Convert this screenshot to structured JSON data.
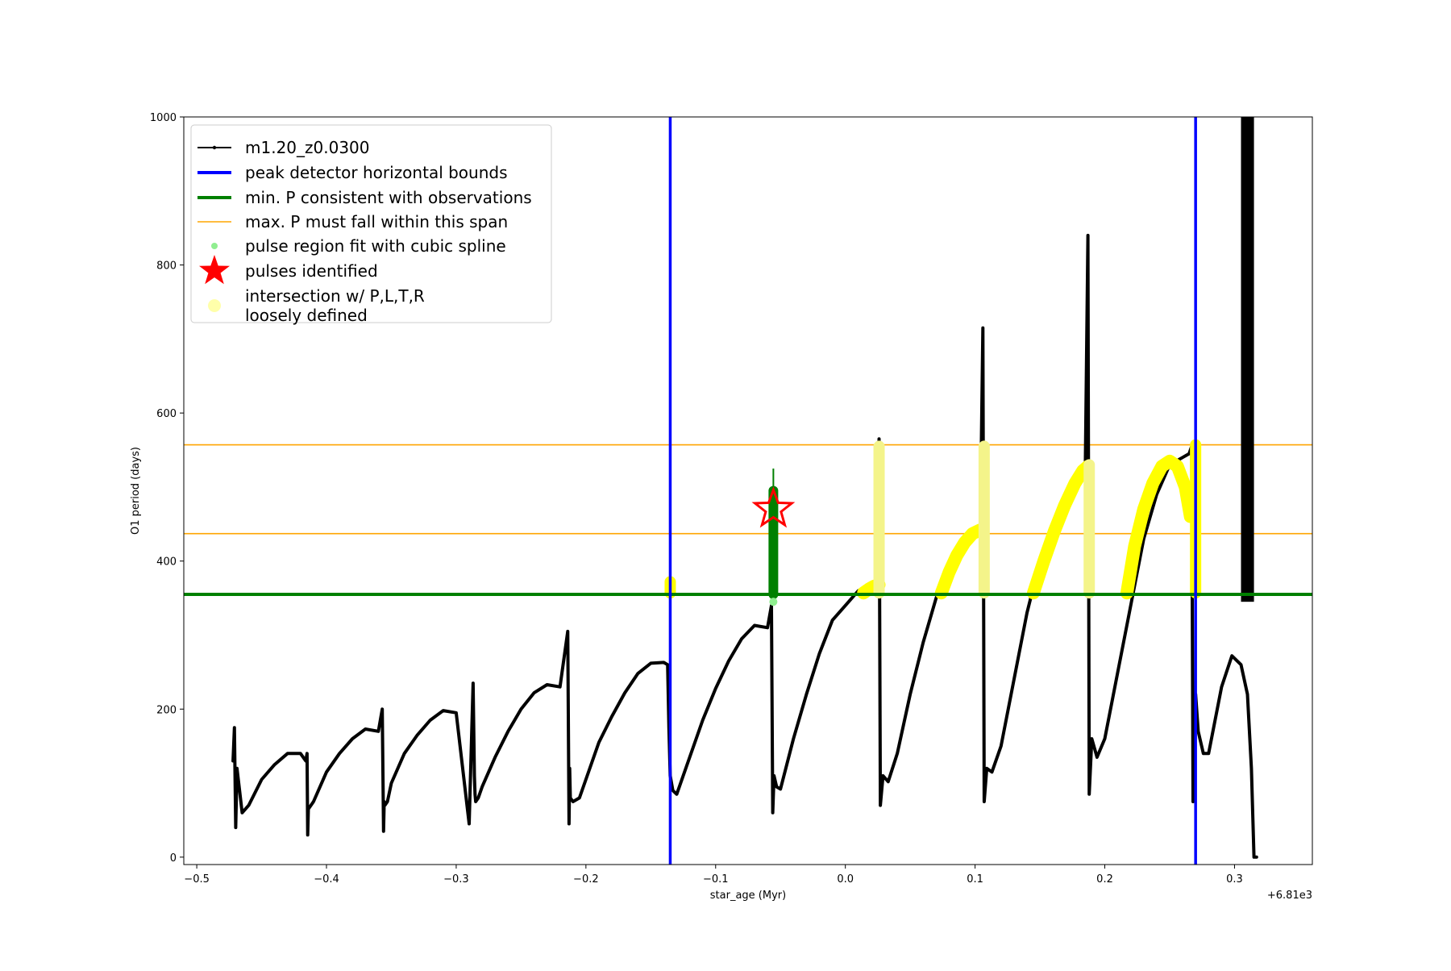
{
  "chart_data": {
    "type": "line",
    "xlabel": "star_age (Myr)",
    "ylabel": "O1 period (days)",
    "x_offset_label": "+6.81e3",
    "xlim": [
      -0.51,
      0.36
    ],
    "ylim": [
      -10,
      1000
    ],
    "xticks": [
      -0.5,
      -0.4,
      -0.3,
      -0.2,
      -0.1,
      0.0,
      0.1,
      0.2,
      0.3
    ],
    "xtick_labels": [
      "−0.5",
      "−0.4",
      "−0.3",
      "−0.2",
      "−0.1",
      "0.0",
      "0.1",
      "0.2",
      "0.3"
    ],
    "yticks": [
      0,
      200,
      400,
      600,
      800,
      1000
    ],
    "ytick_labels": [
      "0",
      "200",
      "400",
      "600",
      "800",
      "1000"
    ],
    "legend_position": "upper-left",
    "series": [
      {
        "name": "m1.20_z0.0300",
        "color": "#000000",
        "kind": "line-marker",
        "x": [
          -0.472,
          -0.471,
          -0.47,
          -0.469,
          -0.467,
          -0.465,
          -0.46,
          -0.45,
          -0.44,
          -0.43,
          -0.42,
          -0.416,
          -0.415,
          -0.4145,
          -0.414,
          -0.412,
          -0.41,
          -0.4,
          -0.39,
          -0.38,
          -0.37,
          -0.36,
          -0.357,
          -0.356,
          -0.3555,
          -0.355,
          -0.353,
          -0.35,
          -0.34,
          -0.33,
          -0.32,
          -0.31,
          -0.3,
          -0.29,
          -0.287,
          -0.286,
          -0.2855,
          -0.285,
          -0.283,
          -0.28,
          -0.27,
          -0.26,
          -0.25,
          -0.24,
          -0.23,
          -0.22,
          -0.214,
          -0.213,
          -0.2125,
          -0.212,
          -0.21,
          -0.205,
          -0.19,
          -0.18,
          -0.17,
          -0.16,
          -0.15,
          -0.14,
          -0.137,
          -0.136,
          -0.135,
          -0.133,
          -0.13,
          -0.12,
          -0.11,
          -0.1,
          -0.09,
          -0.08,
          -0.07,
          -0.06,
          -0.057,
          -0.056,
          -0.055,
          -0.053,
          -0.05,
          -0.04,
          -0.03,
          -0.02,
          -0.01,
          0.0,
          0.01,
          0.02,
          0.025,
          0.026,
          0.027,
          0.029,
          0.033,
          0.04,
          0.05,
          0.06,
          0.07,
          0.08,
          0.09,
          0.1,
          0.104,
          0.106,
          0.107,
          0.109,
          0.113,
          0.12,
          0.13,
          0.14,
          0.15,
          0.16,
          0.17,
          0.18,
          0.185,
          0.187,
          0.188,
          0.19,
          0.194,
          0.2,
          0.21,
          0.22,
          0.23,
          0.24,
          0.25,
          0.26,
          0.265,
          0.267,
          0.268,
          0.27,
          0.272,
          0.276,
          0.28,
          0.29,
          0.298,
          0.305,
          0.31,
          0.313,
          0.315,
          0.317
        ],
        "y": [
          130,
          175,
          40,
          120,
          90,
          60,
          70,
          105,
          125,
          140,
          140,
          130,
          140,
          30,
          65,
          70,
          75,
          115,
          140,
          160,
          173,
          170,
          200,
          35,
          75,
          70,
          75,
          100,
          140,
          165,
          185,
          198,
          195,
          45,
          235,
          110,
          85,
          75,
          80,
          95,
          135,
          170,
          200,
          222,
          233,
          230,
          305,
          45,
          120,
          80,
          75,
          80,
          155,
          190,
          222,
          248,
          262,
          263,
          260,
          175,
          110,
          90,
          85,
          135,
          185,
          228,
          265,
          295,
          313,
          310,
          340,
          60,
          110,
          95,
          92,
          160,
          220,
          275,
          320,
          340,
          360,
          365,
          370,
          565,
          70,
          110,
          102,
          140,
          220,
          290,
          350,
          395,
          420,
          440,
          440,
          715,
          75,
          120,
          115,
          150,
          240,
          330,
          400,
          450,
          490,
          520,
          530,
          840,
          85,
          160,
          135,
          160,
          250,
          340,
          430,
          490,
          530,
          540,
          545,
          555,
          75,
          220,
          170,
          140,
          140,
          230,
          272,
          260,
          220,
          120,
          0,
          0
        ]
      },
      {
        "name": "peak detector horizontal bounds",
        "color": "#0000ff",
        "kind": "vline",
        "x": [
          -0.135,
          0.27
        ]
      },
      {
        "name": "min. P consistent with observations",
        "color": "#008000",
        "kind": "hline",
        "y": [
          355
        ]
      },
      {
        "name": "max. P must fall within this span",
        "color": "#ffa500",
        "kind": "hline",
        "y": [
          437,
          557
        ]
      },
      {
        "name": "pulse region fit with cubic spline",
        "color": "#008000",
        "kind": "vband",
        "x": [
          -0.0555
        ],
        "y_low": [
          355
        ],
        "y_high": [
          495
        ]
      },
      {
        "name": "pulses identified",
        "color": "#ff0000",
        "kind": "star",
        "x": [
          -0.0555
        ],
        "y": [
          470
        ]
      },
      {
        "name": "intersection w/ P,L,T,R\nloosely defined",
        "color": "#ffff00",
        "kind": "yellow-region",
        "arcs": [
          {
            "x": [
              0.014,
              0.018,
              0.022,
              0.026
            ],
            "y": [
              357,
              362,
              366,
              368
            ]
          },
          {
            "x": [
              0.074,
              0.08,
              0.086,
              0.092,
              0.098,
              0.104
            ],
            "y": [
              357,
              385,
              408,
              425,
              437,
              442
            ]
          },
          {
            "x": [
              0.145,
              0.153,
              0.161,
              0.169,
              0.177,
              0.183,
              0.187
            ],
            "y": [
              357,
              400,
              440,
              475,
              505,
              522,
              528
            ]
          },
          {
            "x": [
              0.217,
              0.223,
              0.23,
              0.237,
              0.244,
              0.25,
              0.256,
              0.262,
              0.266
            ],
            "y": [
              357,
              420,
              470,
              505,
              528,
              535,
              528,
              500,
              460
            ]
          }
        ],
        "bands": [
          {
            "x": -0.135,
            "y_low": 357,
            "y_high": 372
          },
          {
            "x": 0.026,
            "y_low": 357,
            "y_high": 555
          },
          {
            "x": 0.107,
            "y_low": 357,
            "y_high": 555
          },
          {
            "x": 0.188,
            "y_low": 357,
            "y_high": 530
          },
          {
            "x": 0.27,
            "y_low": 357,
            "y_high": 557
          }
        ]
      }
    ]
  },
  "legend": {
    "items": [
      {
        "label": "m1.20_z0.0300",
        "swatch": "line-marker",
        "color": "#000000"
      },
      {
        "label": "peak detector horizontal bounds",
        "swatch": "line",
        "color": "#0000ff"
      },
      {
        "label": "min. P consistent with observations",
        "swatch": "line",
        "color": "#008000"
      },
      {
        "label": "max. P must fall within this span",
        "swatch": "thin-line",
        "color": "#ffa500"
      },
      {
        "label": "pulse region fit with cubic spline",
        "swatch": "dot",
        "color": "#90ee90"
      },
      {
        "label": "pulses identified",
        "swatch": "star",
        "color": "#ff0000"
      },
      {
        "label": "intersection w/ P,L,T,R",
        "label2": "loosely defined",
        "swatch": "big-dot",
        "color": "#ffffaa"
      }
    ]
  }
}
